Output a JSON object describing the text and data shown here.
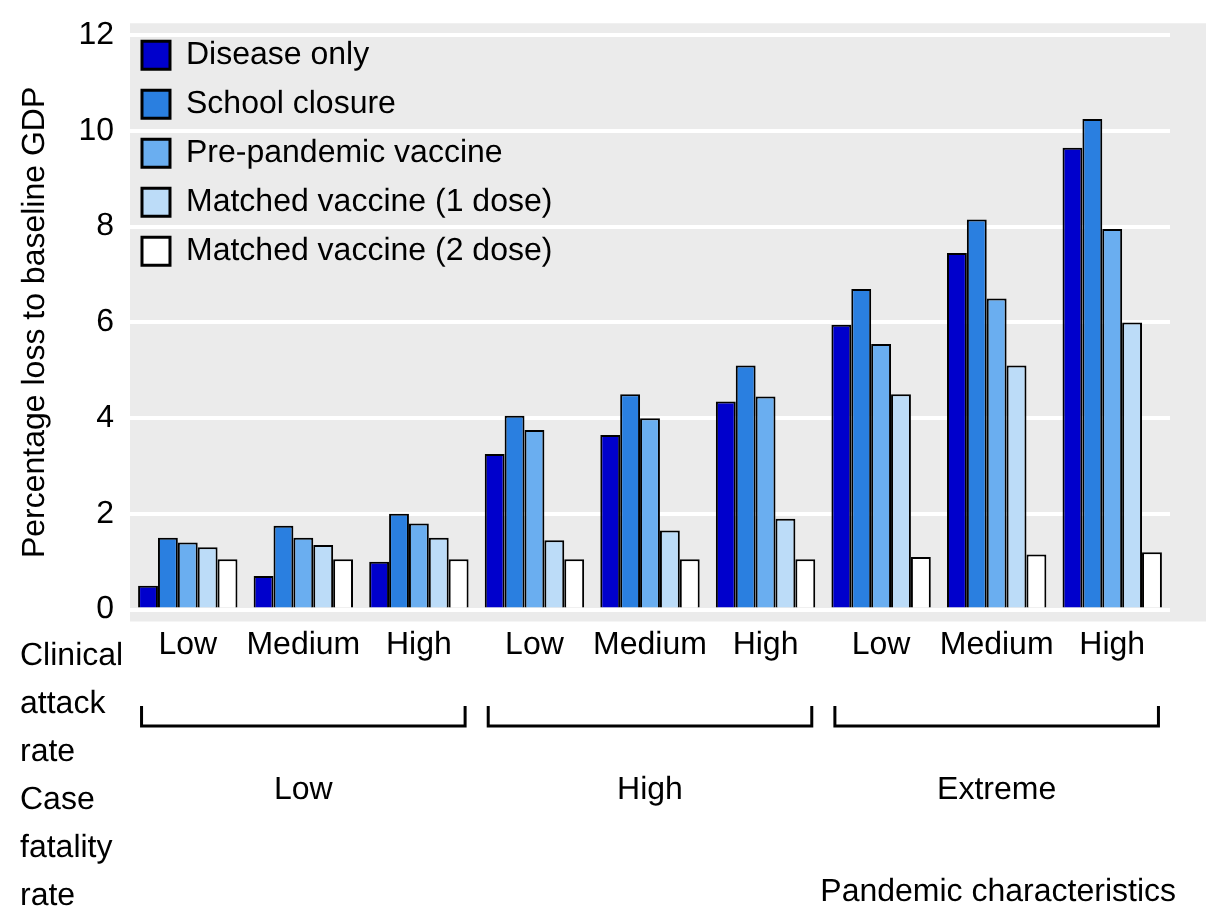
{
  "chart_data": {
    "type": "bar",
    "ylabel": "Percentage loss to baseline GDP",
    "categories": [
      "Low",
      "Medium",
      "High",
      "Low",
      "Medium",
      "High",
      "Low",
      "Medium",
      "High"
    ],
    "ylim": [
      0,
      12
    ],
    "yticks": [
      0,
      2,
      4,
      6,
      8,
      10,
      12
    ],
    "grid": "y",
    "legend": "top left",
    "series": [
      {
        "name": "Disease only",
        "color": "#0000cc",
        "values": [
          0.5,
          0.7,
          1.0,
          3.25,
          3.65,
          4.35,
          5.95,
          7.45,
          9.65
        ]
      },
      {
        "name": "School closure",
        "color": "#2a7fe0",
        "values": [
          1.5,
          1.75,
          2.0,
          4.05,
          4.5,
          5.1,
          6.7,
          8.15,
          10.25
        ]
      },
      {
        "name": "Pre-pandemic vaccine",
        "color": "#6aaef0",
        "values": [
          1.4,
          1.5,
          1.8,
          3.75,
          4.0,
          4.45,
          5.55,
          6.5,
          7.95
        ]
      },
      {
        "name": "Matched vaccine (1 dose)",
        "color": "#bcdcf8",
        "values": [
          1.3,
          1.35,
          1.5,
          1.45,
          1.65,
          1.9,
          4.5,
          5.1,
          6.0
        ]
      },
      {
        "name": "Matched vaccine (2 dose)",
        "color": "#ffffff",
        "values": [
          1.05,
          1.05,
          1.05,
          1.05,
          1.05,
          1.05,
          1.1,
          1.15,
          1.2
        ]
      }
    ],
    "annotations": [
      "Clinical attack rate",
      "Case fatality rate",
      "Low",
      "High",
      "Extreme",
      "Pandemic characteristics"
    ]
  }
}
